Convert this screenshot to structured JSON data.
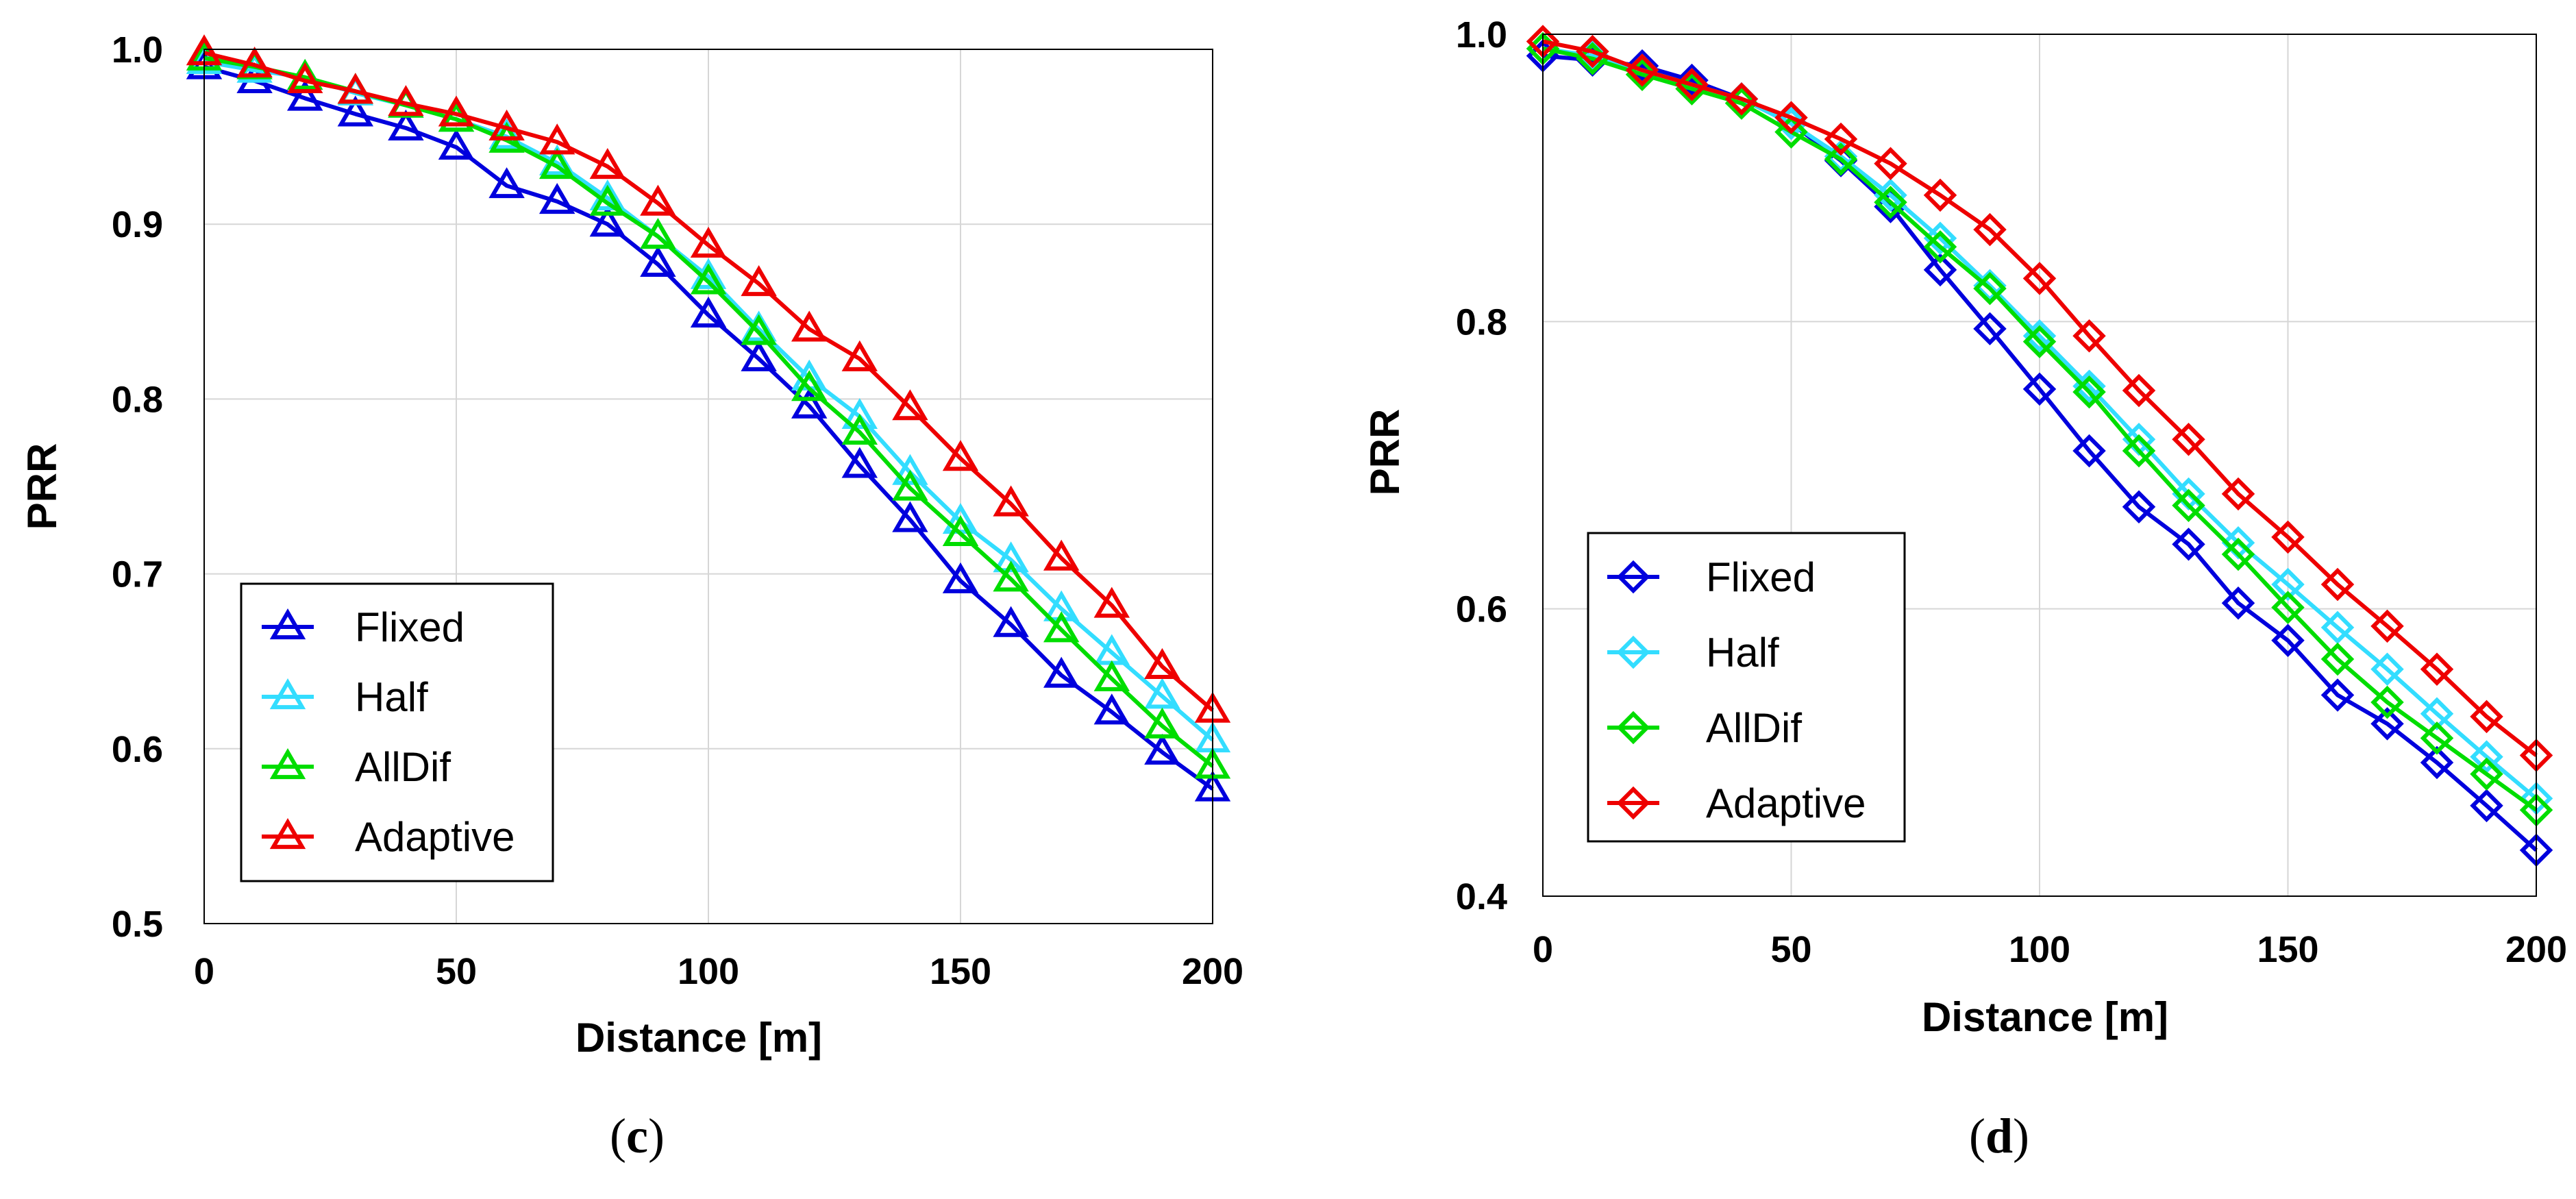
{
  "chart_data": [
    {
      "type": "line",
      "caption_letter": "c",
      "xlabel": "Distance [m]",
      "ylabel": "PRR",
      "xlim": [
        0,
        200
      ],
      "ylim": [
        0.5,
        1.0
      ],
      "x_ticks": [
        0,
        50,
        100,
        150,
        200
      ],
      "x_tick_labels": [
        "0",
        "50",
        "100",
        "150",
        "200"
      ],
      "y_ticks": [
        0.5,
        0.6,
        0.7,
        0.8,
        0.9,
        1.0
      ],
      "y_tick_labels": [
        "0.5",
        "0.6",
        "0.7",
        "0.8",
        "0.9",
        "1.0"
      ],
      "grid": true,
      "marker": "triangle",
      "legend_position": "bottom-left",
      "x": [
        0,
        10,
        20,
        30,
        40,
        50,
        60,
        70,
        80,
        90,
        100,
        110,
        120,
        130,
        140,
        150,
        160,
        170,
        180,
        190,
        200
      ],
      "series": [
        {
          "name": "Flixed",
          "color": "#0000dd",
          "values": [
            0.99,
            0.982,
            0.972,
            0.963,
            0.955,
            0.944,
            0.922,
            0.913,
            0.9,
            0.877,
            0.848,
            0.823,
            0.796,
            0.762,
            0.731,
            0.696,
            0.671,
            0.642,
            0.621,
            0.598,
            0.577
          ]
        },
        {
          "name": "Half",
          "color": "#33ddff",
          "values": [
            0.993,
            0.988,
            0.984,
            0.975,
            0.968,
            0.96,
            0.95,
            0.935,
            0.915,
            0.893,
            0.87,
            0.84,
            0.812,
            0.79,
            0.758,
            0.73,
            0.708,
            0.68,
            0.655,
            0.63,
            0.605
          ]
        },
        {
          "name": "AllDif",
          "color": "#00dd00",
          "values": [
            0.995,
            0.99,
            0.984,
            0.976,
            0.968,
            0.96,
            0.948,
            0.933,
            0.912,
            0.893,
            0.867,
            0.838,
            0.806,
            0.781,
            0.749,
            0.723,
            0.697,
            0.668,
            0.64,
            0.613,
            0.59
          ]
        },
        {
          "name": "Adaptive",
          "color": "#ee0000",
          "values": [
            0.998,
            0.991,
            0.982,
            0.976,
            0.969,
            0.963,
            0.955,
            0.947,
            0.933,
            0.912,
            0.888,
            0.866,
            0.84,
            0.823,
            0.795,
            0.766,
            0.74,
            0.709,
            0.682,
            0.647,
            0.622
          ]
        }
      ]
    },
    {
      "type": "line",
      "caption_letter": "d",
      "xlabel": "Distance [m]",
      "ylabel": "PRR",
      "xlim": [
        0,
        200
      ],
      "ylim": [
        0.4,
        1.0
      ],
      "x_ticks": [
        0,
        50,
        100,
        150,
        200
      ],
      "x_tick_labels": [
        "0",
        "50",
        "100",
        "150",
        "200"
      ],
      "y_ticks": [
        0.4,
        0.6,
        0.8,
        1.0
      ],
      "y_tick_labels": [
        "0.4",
        "0.6",
        "0.8",
        "1.0"
      ],
      "grid": true,
      "marker": "diamond",
      "legend_position": "center-left",
      "x": [
        0,
        10,
        20,
        30,
        40,
        50,
        60,
        70,
        80,
        90,
        100,
        110,
        120,
        130,
        140,
        150,
        160,
        170,
        180,
        190,
        200
      ],
      "series": [
        {
          "name": "Flixed",
          "color": "#0000dd",
          "values": [
            0.985,
            0.982,
            0.978,
            0.968,
            0.955,
            0.938,
            0.912,
            0.88,
            0.836,
            0.795,
            0.753,
            0.71,
            0.671,
            0.645,
            0.604,
            0.578,
            0.54,
            0.52,
            0.493,
            0.463,
            0.432
          ]
        },
        {
          "name": "Half",
          "color": "#33ddff",
          "values": [
            0.99,
            0.985,
            0.975,
            0.965,
            0.955,
            0.938,
            0.915,
            0.888,
            0.858,
            0.825,
            0.79,
            0.755,
            0.718,
            0.68,
            0.646,
            0.617,
            0.587,
            0.558,
            0.527,
            0.497,
            0.468
          ]
        },
        {
          "name": "AllDif",
          "color": "#00dd00",
          "values": [
            0.99,
            0.983,
            0.972,
            0.962,
            0.952,
            0.932,
            0.913,
            0.883,
            0.852,
            0.823,
            0.786,
            0.751,
            0.71,
            0.672,
            0.638,
            0.601,
            0.565,
            0.535,
            0.51,
            0.485,
            0.46
          ]
        },
        {
          "name": "Adaptive",
          "color": "#ee0000",
          "values": [
            0.995,
            0.988,
            0.975,
            0.965,
            0.955,
            0.942,
            0.927,
            0.91,
            0.888,
            0.864,
            0.83,
            0.79,
            0.752,
            0.718,
            0.68,
            0.65,
            0.617,
            0.588,
            0.558,
            0.525,
            0.498
          ]
        }
      ]
    }
  ]
}
